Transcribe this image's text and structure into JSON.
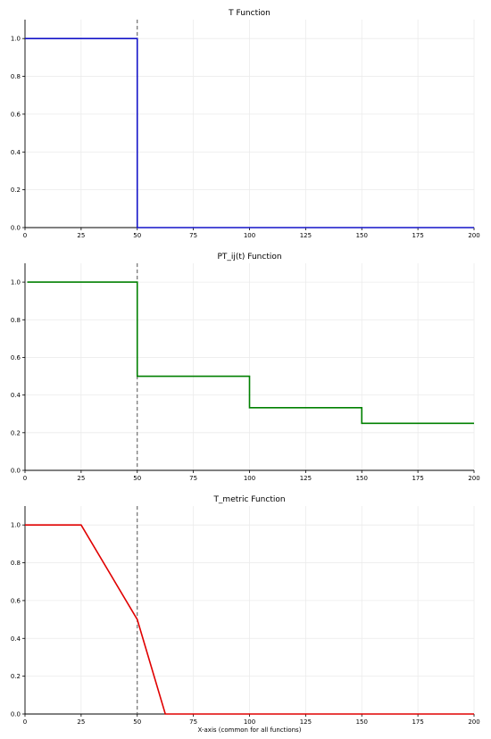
{
  "xlabel_common": "X-axis (common for all functions)",
  "chart_data": [
    {
      "type": "line",
      "title": "T Function",
      "xlabel": "",
      "ylabel": "",
      "xlim": [
        0,
        200
      ],
      "ylim": [
        0,
        1.1
      ],
      "x_ticks": [
        "0",
        "25",
        "50",
        "75",
        "100",
        "125",
        "150",
        "175",
        "200"
      ],
      "y_ticks": [
        "0.0",
        "0.2",
        "0.4",
        "0.6",
        "0.8",
        "1.0"
      ],
      "grid": true,
      "vline": 50,
      "series": [
        {
          "color": "#1414c8",
          "step": true,
          "x": [
            0,
            50,
            50,
            200
          ],
          "y": [
            1.0,
            1.0,
            0.0,
            0.0
          ]
        }
      ]
    },
    {
      "type": "line",
      "title": "PT_ij(t) Function",
      "xlabel": "",
      "ylabel": "",
      "xlim": [
        0,
        200
      ],
      "ylim": [
        0,
        1.1
      ],
      "x_ticks": [
        "0",
        "25",
        "50",
        "75",
        "100",
        "125",
        "150",
        "175",
        "200"
      ],
      "y_ticks": [
        "0.0",
        "0.2",
        "0.4",
        "0.6",
        "0.8",
        "1.0"
      ],
      "grid": true,
      "vline": 50,
      "series": [
        {
          "color": "#008000",
          "step": true,
          "x": [
            1,
            50,
            50,
            100,
            100,
            150,
            150,
            200
          ],
          "y": [
            1.0,
            1.0,
            0.5,
            0.5,
            0.333,
            0.333,
            0.25,
            0.25
          ]
        }
      ]
    },
    {
      "type": "line",
      "title": "T_metric Function",
      "xlabel": "X-axis (common for all functions)",
      "ylabel": "",
      "xlim": [
        0,
        200
      ],
      "ylim": [
        0,
        1.1
      ],
      "x_ticks": [
        "0",
        "25",
        "50",
        "75",
        "100",
        "125",
        "150",
        "175",
        "200"
      ],
      "y_ticks": [
        "0.0",
        "0.2",
        "0.4",
        "0.6",
        "0.8",
        "1.0"
      ],
      "grid": true,
      "vline": 50,
      "series": [
        {
          "color": "#e00000",
          "step": false,
          "x": [
            0,
            25,
            50,
            62.5,
            200
          ],
          "y": [
            1.0,
            1.0,
            0.5,
            0.0,
            0.0
          ]
        }
      ]
    }
  ]
}
